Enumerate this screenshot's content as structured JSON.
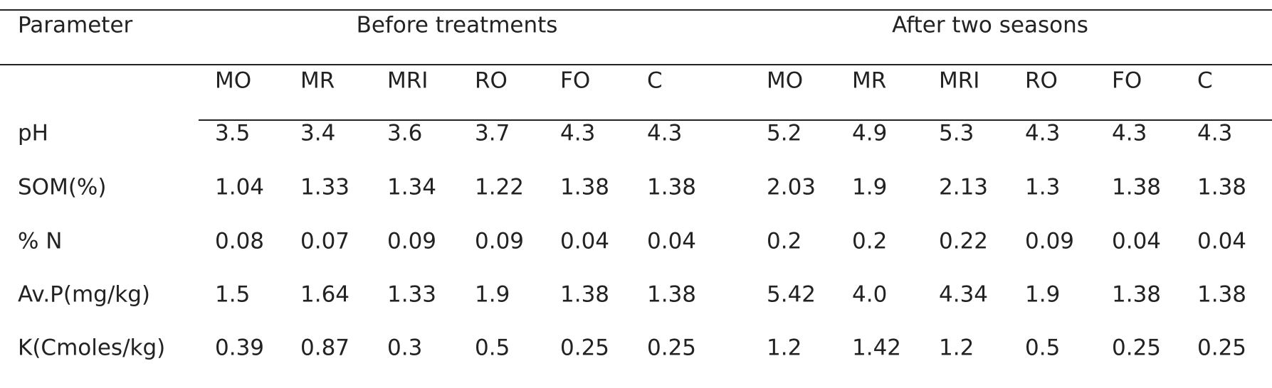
{
  "table": {
    "header": {
      "parameter": "Parameter",
      "groups": [
        "Before treatments",
        "After two seasons"
      ]
    },
    "columns": [
      "MO",
      "MR",
      "MRI",
      "RO",
      "FO",
      "C",
      "MO",
      "MR",
      "MRI",
      "RO",
      "FO",
      "C"
    ],
    "rows": [
      [
        "pH",
        "3.5",
        "3.4",
        "3.6",
        "3.7",
        "4.3",
        "4.3",
        "5.2",
        "4.9",
        "5.3",
        "4.3",
        "4.3",
        "4.3"
      ],
      [
        "SOM(%)",
        "1.04",
        "1.33",
        "1.34",
        "1.22",
        "1.38",
        "1.38",
        "2.03",
        "1.9",
        "2.13",
        "1.3",
        "1.38",
        "1.38"
      ],
      [
        "% N",
        "0.08",
        "0.07",
        "0.09",
        "0.09",
        "0.04",
        "0.04",
        "0.2",
        "0.2",
        "0.22",
        "0.09",
        "0.04",
        "0.04"
      ],
      [
        "Av.P(mg/kg)",
        "1.5",
        "1.64",
        "1.33",
        "1.9",
        "1.38",
        "1.38",
        "5.42",
        "4.0",
        "4.34",
        "1.9",
        "1.38",
        "1.38"
      ],
      [
        "K(Cmoles/kg)",
        "0.39",
        "0.87",
        "0.3",
        "0.5",
        "0.25",
        "0.25",
        "1.2",
        "1.42",
        "1.2",
        "0.5",
        "0.25",
        "0.25"
      ]
    ]
  }
}
